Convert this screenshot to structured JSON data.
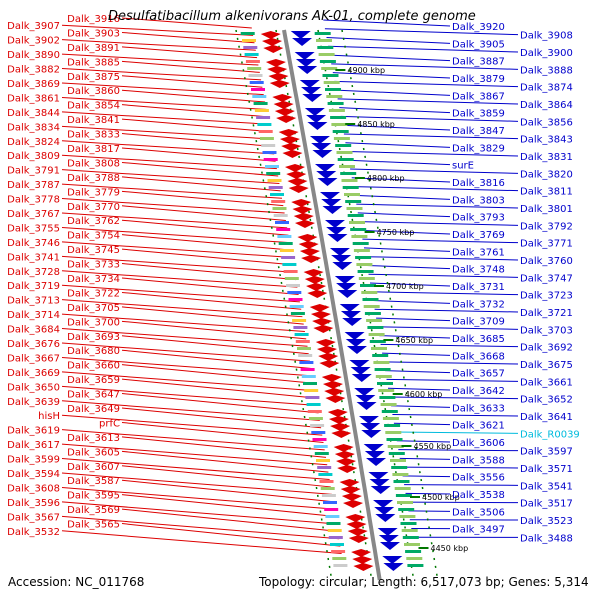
{
  "title": "Desulfatibacillum alkenivorans AK-01, complete genome",
  "accession": "Accession: NC_011768",
  "topology": "Topology: circular; Length: 6,517,073 bp; Genes: 5,314",
  "colors": {
    "forward": "#dd0000",
    "reverse": "#0000cc",
    "rna": "#00bbdd",
    "backbone": "#888888",
    "tick": "#007700"
  },
  "ticks": [
    "4900 kbp",
    "4850 kbp",
    "4800 kbp",
    "4750 kbp",
    "4700 kbp",
    "4650 kbp",
    "4600 kbp",
    "4550 kbp",
    "4500 kbp",
    "4450 kbp"
  ],
  "left_labels": [
    "Dalk_3916",
    "Dalk_3907",
    "Dalk_3903",
    "Dalk_3902",
    "Dalk_3891",
    "Dalk_3890",
    "Dalk_3885",
    "Dalk_3882",
    "Dalk_3875",
    "Dalk_3869",
    "Dalk_3860",
    "Dalk_3861",
    "Dalk_3854",
    "Dalk_3844",
    "Dalk_3841",
    "Dalk_3834",
    "Dalk_3833",
    "Dalk_3824",
    "Dalk_3817",
    "Dalk_3809",
    "Dalk_3808",
    "Dalk_3791",
    "Dalk_3788",
    "Dalk_3787",
    "Dalk_3779",
    "Dalk_3778",
    "Dalk_3770",
    "Dalk_3767",
    "Dalk_3762",
    "Dalk_3755",
    "Dalk_3754",
    "Dalk_3746",
    "Dalk_3745",
    "Dalk_3741",
    "Dalk_3733",
    "Dalk_3728",
    "Dalk_3734",
    "Dalk_3719",
    "Dalk_3722",
    "Dalk_3713",
    "Dalk_3705",
    "Dalk_3714",
    "Dalk_3700",
    "Dalk_3684",
    "Dalk_3693",
    "Dalk_3676",
    "Dalk_3680",
    "Dalk_3667",
    "Dalk_3660",
    "Dalk_3669",
    "Dalk_3659",
    "Dalk_3650",
    "Dalk_3647",
    "Dalk_3639",
    "Dalk_3649",
    "hisH",
    "prfC",
    "Dalk_3619",
    "Dalk_3613",
    "Dalk_3617",
    "Dalk_3605",
    "Dalk_3599",
    "Dalk_3607",
    "Dalk_3594",
    "Dalk_3587",
    "Dalk_3608",
    "Dalk_3595",
    "Dalk_3596",
    "Dalk_3569",
    "Dalk_3567",
    "Dalk_3565",
    "Dalk_3532"
  ],
  "right_labels": [
    "Dalk_3920",
    "Dalk_3908",
    "Dalk_3905",
    "Dalk_3900",
    "Dalk_3887",
    "Dalk_3888",
    "Dalk_3879",
    "Dalk_3874",
    "Dalk_3867",
    "Dalk_3864",
    "Dalk_3859",
    "Dalk_3856",
    "Dalk_3847",
    "Dalk_3843",
    "Dalk_3829",
    "Dalk_3831",
    "surE",
    "Dalk_3820",
    "Dalk_3816",
    "Dalk_3811",
    "Dalk_3803",
    "Dalk_3801",
    "Dalk_3793",
    "Dalk_3792",
    "Dalk_3769",
    "Dalk_3771",
    "Dalk_3761",
    "Dalk_3760",
    "Dalk_3748",
    "Dalk_3747",
    "Dalk_3731",
    "Dalk_3723",
    "Dalk_3732",
    "Dalk_3721",
    "Dalk_3709",
    "Dalk_3703",
    "Dalk_3685",
    "Dalk_3692",
    "Dalk_3668",
    "Dalk_3675",
    "Dalk_3657",
    "Dalk_3661",
    "Dalk_3642",
    "Dalk_3652",
    "Dalk_3633",
    "Dalk_3641",
    "Dalk_3621",
    "Dalk_R0039",
    "Dalk_3606",
    "Dalk_3597",
    "Dalk_3588",
    "Dalk_3571",
    "Dalk_3556",
    "Dalk_3541",
    "Dalk_3538",
    "Dalk_3517",
    "Dalk_3506",
    "Dalk_3523",
    "Dalk_3497",
    "Dalk_3488"
  ]
}
